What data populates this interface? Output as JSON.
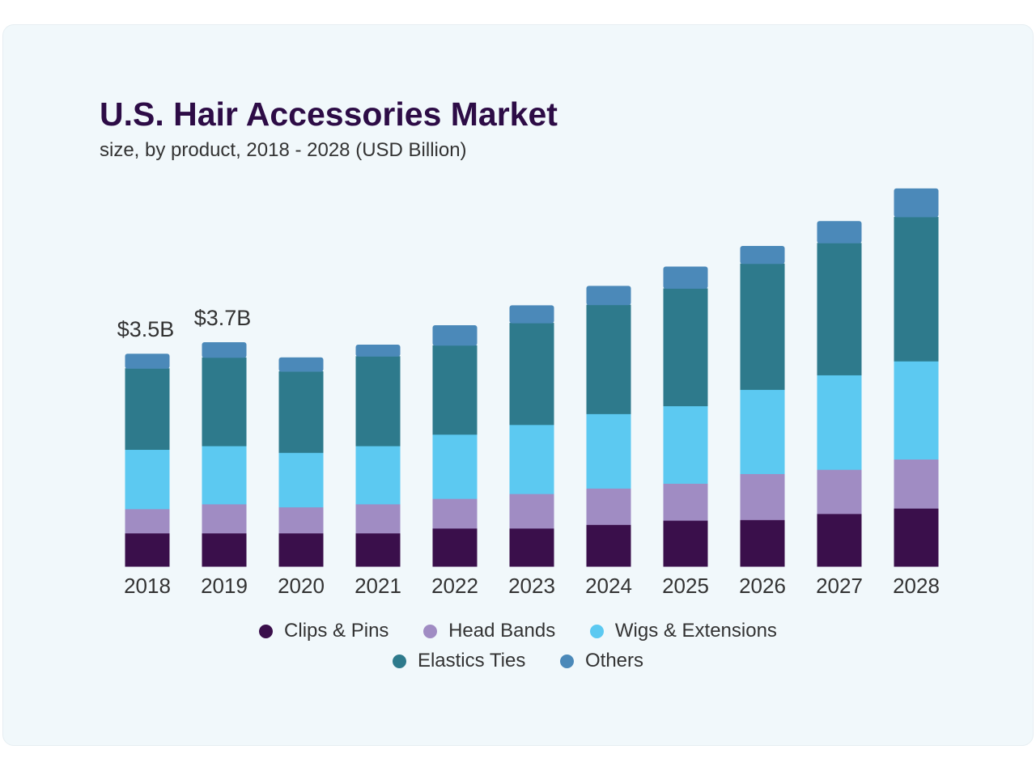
{
  "chart_data": {
    "type": "bar",
    "stacked": true,
    "title": "U.S. Hair Accessories Market",
    "subtitle": "size, by product, 2018 - 2028 (USD Billion)",
    "categories": [
      "2018",
      "2019",
      "2020",
      "2021",
      "2022",
      "2023",
      "2024",
      "2025",
      "2026",
      "2027",
      "2028"
    ],
    "series": [
      {
        "name": "Clips & Pins",
        "color": "#3a0f4b",
        "values": [
          0.55,
          0.55,
          0.55,
          0.55,
          0.63,
          0.63,
          0.69,
          0.76,
          0.77,
          0.87,
          0.96
        ]
      },
      {
        "name": "Head Bands",
        "color": "#a08cc3",
        "values": [
          0.4,
          0.48,
          0.43,
          0.48,
          0.49,
          0.57,
          0.6,
          0.61,
          0.76,
          0.73,
          0.81
        ]
      },
      {
        "name": "Wigs & Extensions",
        "color": "#5cc9f1",
        "values": [
          0.98,
          0.96,
          0.9,
          0.96,
          1.06,
          1.14,
          1.23,
          1.28,
          1.39,
          1.56,
          1.62
        ]
      },
      {
        "name": "Elastics Ties",
        "color": "#2e7a8c",
        "values": [
          1.34,
          1.46,
          1.34,
          1.48,
          1.47,
          1.68,
          1.8,
          1.94,
          2.08,
          2.18,
          2.38
        ]
      },
      {
        "name": "Others",
        "color": "#4b89b9",
        "values": [
          0.24,
          0.25,
          0.23,
          0.19,
          0.33,
          0.29,
          0.31,
          0.36,
          0.29,
          0.36,
          0.47
        ]
      }
    ],
    "annotations": [
      {
        "category": "2018",
        "text": "$3.5B"
      },
      {
        "category": "2019",
        "text": "$3.7B"
      }
    ],
    "xlabel": "",
    "ylabel": "",
    "grid": false,
    "legend_position": "bottom"
  }
}
